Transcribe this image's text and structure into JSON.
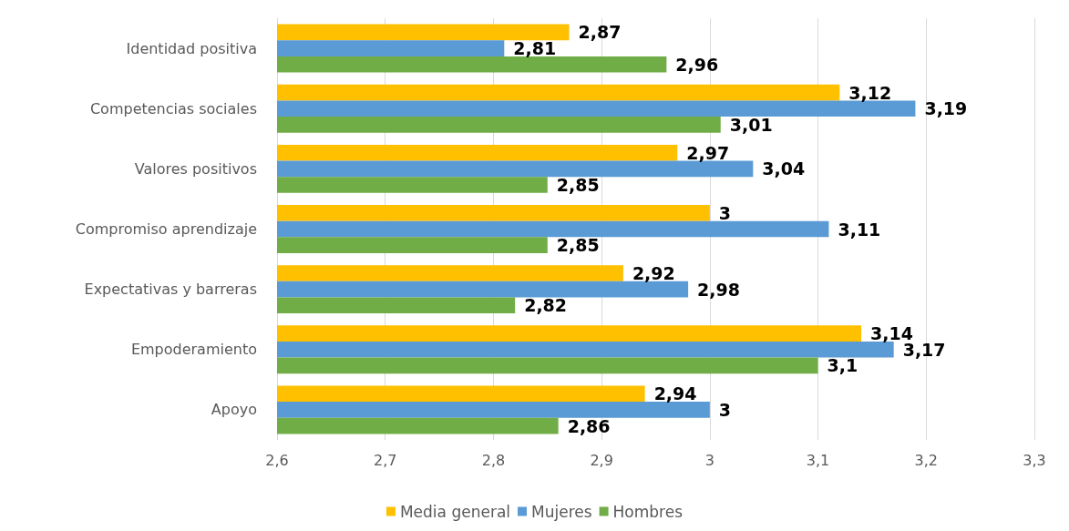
{
  "chart_data": {
    "type": "bar",
    "orientation": "horizontal",
    "categories": [
      "Identidad positiva",
      "Competencias sociales",
      "Valores positivos",
      "Compromiso aprendizaje",
      "Expectativas y barreras",
      "Empoderamiento",
      "Apoyo"
    ],
    "series": [
      {
        "name": "Media general",
        "color": "#ffc000",
        "values": [
          2.87,
          3.12,
          2.97,
          3,
          2.92,
          3.14,
          2.94
        ],
        "value_labels": [
          "2,87",
          "3,12",
          "2,97",
          "3",
          "2,92",
          "3,14",
          "2,94"
        ]
      },
      {
        "name": "Mujeres",
        "color": "#5b9bd5",
        "values": [
          2.81,
          3.19,
          3.04,
          3.11,
          2.98,
          3.17,
          3
        ],
        "value_labels": [
          "2,81",
          "3,19",
          "3,04",
          "3,11",
          "2,98",
          "3,17",
          "3"
        ]
      },
      {
        "name": "Hombres",
        "color": "#70ad47",
        "values": [
          2.96,
          3.01,
          2.85,
          2.85,
          2.82,
          3.1,
          2.86
        ],
        "value_labels": [
          "2,96",
          "3,01",
          "2,85",
          "2,85",
          "2,82",
          "3,1",
          "2,86"
        ]
      }
    ],
    "xlim": [
      2.6,
      3.3
    ],
    "xticks": [
      {
        "value": 2.6,
        "label": "2,6"
      },
      {
        "value": 2.7,
        "label": "2,7"
      },
      {
        "value": 2.8,
        "label": "2,8"
      },
      {
        "value": 2.9,
        "label": "2,9"
      },
      {
        "value": 3,
        "label": "3"
      },
      {
        "value": 3.1,
        "label": "3,1"
      },
      {
        "value": 3.2,
        "label": "3,2"
      },
      {
        "value": 3.3,
        "label": "3,3"
      }
    ],
    "grid": "x",
    "legend": "bottom"
  }
}
